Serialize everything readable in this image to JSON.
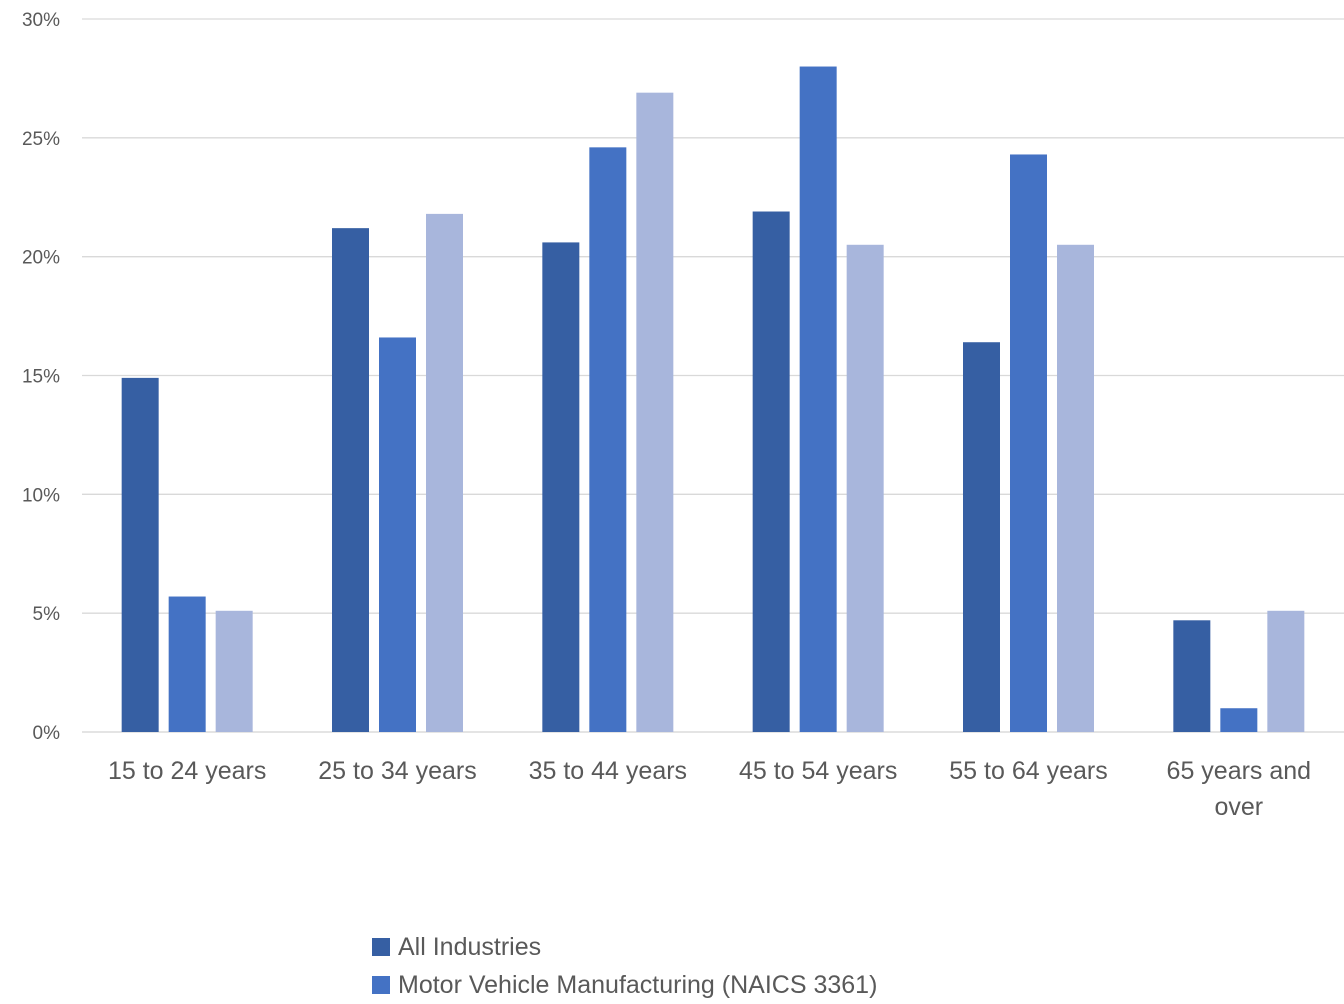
{
  "chart_data": {
    "type": "bar",
    "categories": [
      "15 to 24 years",
      "25 to 34 years",
      "35 to 44 years",
      "45 to 54 years",
      "55 to 64 years",
      "65 years and over"
    ],
    "series": [
      {
        "name": "All Industries",
        "color": "#365fa3",
        "values": [
          14.9,
          21.2,
          20.6,
          21.9,
          16.4,
          4.7
        ]
      },
      {
        "name": "Motor Vehicle Manufacturing (NAICS 3361)",
        "color": "#4472c4",
        "values": [
          5.7,
          16.6,
          24.6,
          28.0,
          24.3,
          1.0
        ]
      },
      {
        "name": "",
        "color": "#a8b6dc",
        "values": [
          5.1,
          21.8,
          26.9,
          20.5,
          20.5,
          5.1
        ]
      }
    ],
    "yticks": [
      "0%",
      "5%",
      "10%",
      "15%",
      "20%",
      "25%",
      "30%"
    ],
    "ylim": [
      0,
      30
    ],
    "grid": true,
    "legend_position": "bottom",
    "gridline_color": "#d9d9d9"
  }
}
